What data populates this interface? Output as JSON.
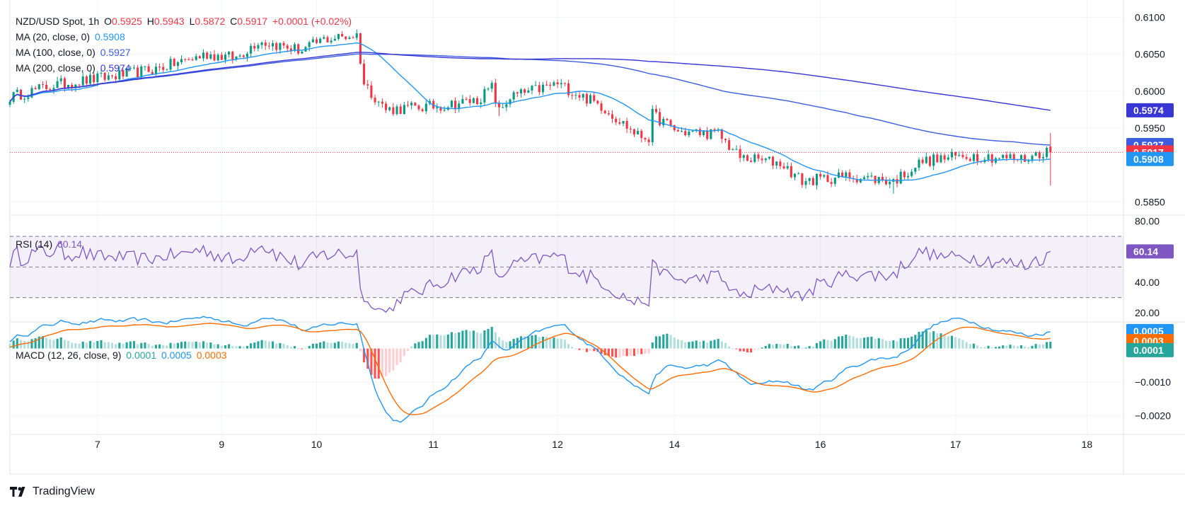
{
  "legend": {
    "symbol": "NZD/USD Spot, 1h",
    "o_label": "O",
    "o": "0.5925",
    "h_label": "H",
    "h": "0.5943",
    "l_label": "L",
    "l": "0.5872",
    "c_label": "C",
    "c": "0.5917",
    "change": "+0.0001 (+0.02%)",
    "ma20_label": "MA (20, close, 0)",
    "ma20": "0.5908",
    "ma100_label": "MA (100, close, 0)",
    "ma100": "0.5927",
    "ma200_label": "MA (200, close, 0)",
    "ma200": "0.5974",
    "rsi_label": "RSI (14)",
    "rsi": "60.14",
    "macd_label": "MACD (12, 26, close, 9)",
    "macd_hist": "0.0001",
    "macd_line": "0.0005",
    "macd_signal": "0.0003"
  },
  "brand": "TradingView",
  "colors": {
    "up": "#089981",
    "down": "#f23645",
    "ma20": "#2196f3",
    "ma100": "#3c5de0",
    "ma200": "#3936d6",
    "rsi": "#7e57c2",
    "macd": "#2196f3",
    "signal": "#ff6d00"
  },
  "chart_data": [
    {
      "type": "candlestick",
      "title": "NZD/USD Spot, 1h",
      "x_ticks": [
        "7",
        "9",
        "10",
        "11",
        "12",
        "14",
        "16",
        "17",
        "18"
      ],
      "x_tick_pos": [
        24,
        58,
        84,
        116,
        150,
        182,
        222,
        259,
        295
      ],
      "x_domain": [
        0,
        305
      ],
      "y_ticks": [
        0.61,
        0.605,
        0.6,
        0.595,
        0.585
      ],
      "ylim": [
        0.5834,
        0.611
      ],
      "last_close": 0.5917,
      "series": [
        {
          "name": "MA (20, close, 0)",
          "last": 0.5908
        },
        {
          "name": "MA (100, close, 0)",
          "last": 0.5927
        },
        {
          "name": "MA (200, close, 0)",
          "last": 0.5974
        }
      ],
      "price_badges": [
        {
          "value": "0.5974",
          "y": 0.5974,
          "color": "#3936d6"
        },
        {
          "value": "0.5927",
          "y": 0.5927,
          "color": "#3c5de0"
        },
        {
          "value": "0.5917",
          "y": 0.5917,
          "color": "#f23645"
        },
        {
          "value": "0.5908",
          "y": 0.5908,
          "color": "#2196f3"
        }
      ],
      "segments": [
        {
          "to": 0,
          "close": 0.5992
        },
        {
          "to": 12,
          "close": 0.6008
        },
        {
          "to": 28,
          "close": 0.602
        },
        {
          "to": 40,
          "close": 0.603
        },
        {
          "to": 54,
          "close": 0.605
        },
        {
          "to": 62,
          "close": 0.6045
        },
        {
          "to": 68,
          "close": 0.6068
        },
        {
          "to": 80,
          "close": 0.6055
        },
        {
          "to": 86,
          "close": 0.607
        },
        {
          "to": 95,
          "close": 0.6076
        },
        {
          "to": 97,
          "close": 0.601
        },
        {
          "to": 103,
          "close": 0.5975
        },
        {
          "to": 118,
          "close": 0.598
        },
        {
          "to": 128,
          "close": 0.5988
        },
        {
          "to": 132,
          "close": 0.6005
        },
        {
          "to": 134,
          "close": 0.5972
        },
        {
          "to": 137,
          "close": 0.5992
        },
        {
          "to": 150,
          "close": 0.601
        },
        {
          "to": 162,
          "close": 0.598
        },
        {
          "to": 172,
          "close": 0.594
        },
        {
          "to": 175,
          "close": 0.5937
        },
        {
          "to": 176,
          "close": 0.5968
        },
        {
          "to": 183,
          "close": 0.5945
        },
        {
          "to": 194,
          "close": 0.5942
        },
        {
          "to": 200,
          "close": 0.591
        },
        {
          "to": 211,
          "close": 0.5903
        },
        {
          "to": 217,
          "close": 0.5878
        },
        {
          "to": 230,
          "close": 0.5885
        },
        {
          "to": 242,
          "close": 0.5878
        },
        {
          "to": 250,
          "close": 0.5905
        },
        {
          "to": 262,
          "close": 0.5913
        },
        {
          "to": 278,
          "close": 0.5908
        },
        {
          "to": 283,
          "close": 0.5918
        },
        {
          "to": 285,
          "close": 0.5917
        }
      ]
    },
    {
      "type": "line",
      "title": "RSI (14)",
      "y_ticks": [
        80.0,
        40.0,
        20.0
      ],
      "ylim": [
        15,
        83
      ],
      "bands": [
        30,
        50,
        70
      ],
      "last": 60.14
    },
    {
      "type": "line+histogram",
      "title": "MACD (12, 26, close, 9)",
      "y_ticks": [
        -0.001,
        -0.002
      ],
      "ylim": [
        -0.00235,
        0.00075
      ],
      "macd_last": 0.0005,
      "signal_last": 0.0003,
      "hist_last": 0.0001,
      "macd_badges": [
        {
          "value": "0.0005",
          "y": 0.00052,
          "color": "#2196f3"
        },
        {
          "value": "0.0003",
          "y": 0.00022,
          "color": "#ff6d00"
        },
        {
          "value": "0.0001",
          "y": -5e-05,
          "color": "#26a69a"
        }
      ]
    }
  ]
}
